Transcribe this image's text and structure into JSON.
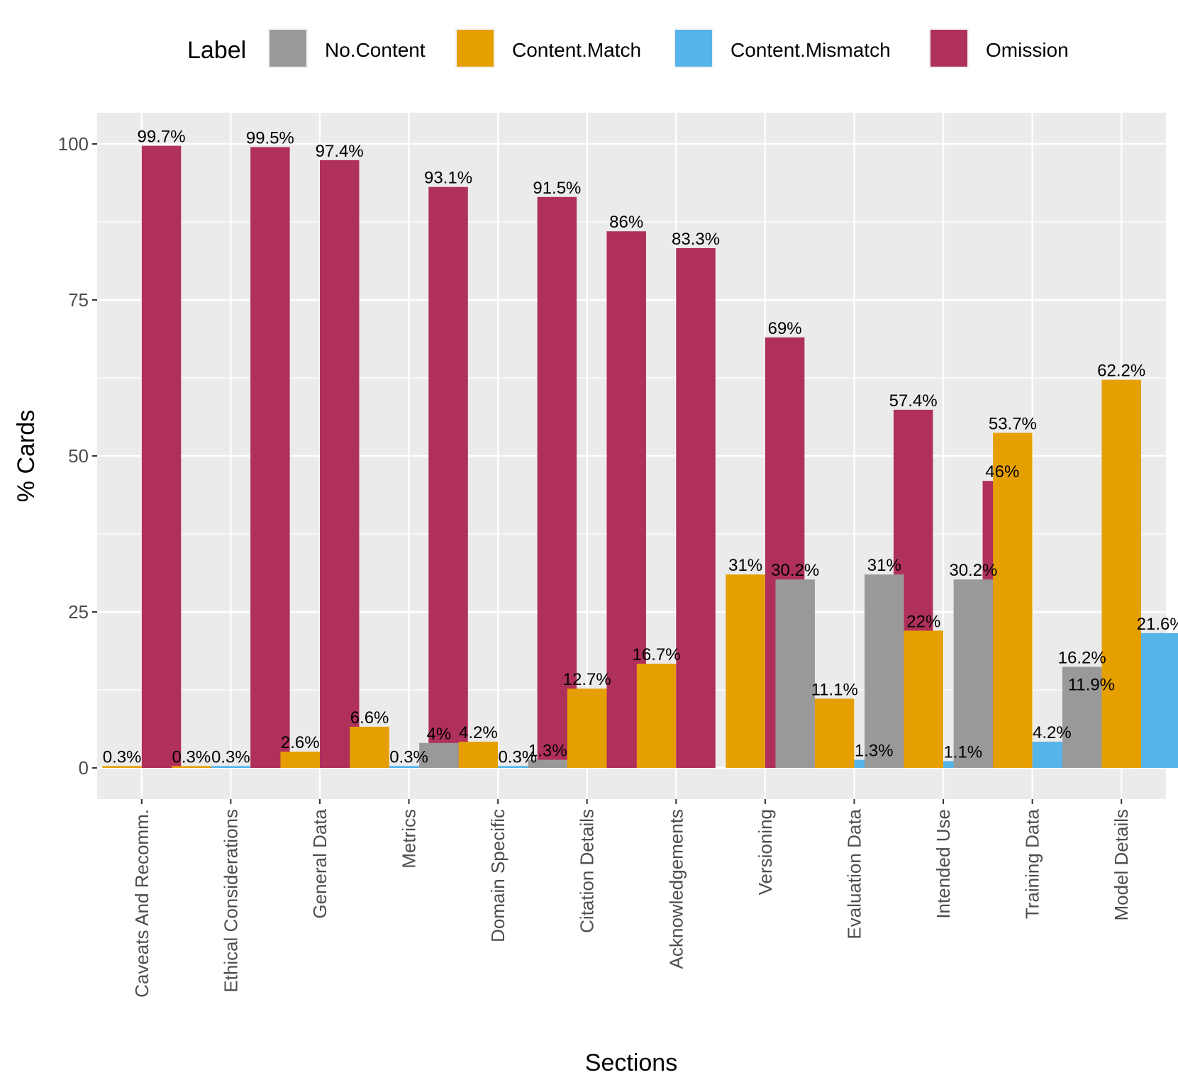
{
  "chart_data": {
    "type": "bar",
    "title": "",
    "xlabel": "Sections",
    "ylabel": "% Cards",
    "ylim": [
      -5,
      105
    ],
    "yticks": [
      0,
      25,
      50,
      75,
      100
    ],
    "legend": {
      "title": "Label",
      "position": "top",
      "entries": [
        "No.Content",
        "Content.Match",
        "Content.Mismatch",
        "Omission"
      ]
    },
    "colors": {
      "No.Content": "#999999",
      "Content.Match": "#E69F00",
      "Content.Mismatch": "#56B4E9",
      "Omission": "#B0305C"
    },
    "panel_background": "#EBEBEB",
    "categories": [
      {
        "name": "Caveats And Recomm.",
        "bars": [
          {
            "series": "Content.Match",
            "value": 0.3,
            "label": "0.3%"
          },
          {
            "series": "Omission",
            "value": 99.7,
            "label": "99.7%"
          }
        ]
      },
      {
        "name": "Ethical Considerations",
        "bars": [
          {
            "series": "Content.Match",
            "value": 0.3,
            "label": "0.3%"
          },
          {
            "series": "Content.Mismatch",
            "value": 0.3,
            "label": "0.3%"
          },
          {
            "series": "Omission",
            "value": 99.5,
            "label": "99.5%"
          }
        ]
      },
      {
        "name": "General Data",
        "bars": [
          {
            "series": "Content.Match",
            "value": 2.6,
            "label": "2.6%"
          },
          {
            "series": "Omission",
            "value": 97.4,
            "label": "97.4%"
          }
        ]
      },
      {
        "name": "Metrics",
        "bars": [
          {
            "series": "Content.Match",
            "value": 6.6,
            "label": "6.6%"
          },
          {
            "series": "Content.Mismatch",
            "value": 0.3,
            "label": "0.3%"
          },
          {
            "series": "Omission",
            "value": 93.1,
            "label": "93.1%"
          }
        ]
      },
      {
        "name": "Domain Specific",
        "bars": [
          {
            "series": "No.Content",
            "value": 4,
            "label": "4%"
          },
          {
            "series": "Content.Match",
            "value": 4.2,
            "label": "4.2%"
          },
          {
            "series": "Content.Mismatch",
            "value": 0.3,
            "label": "0.3%"
          },
          {
            "series": "Omission",
            "value": 91.5,
            "label": "91.5%"
          }
        ]
      },
      {
        "name": "Citation Details",
        "bars": [
          {
            "series": "No.Content",
            "value": 1.3,
            "label": "1.3%"
          },
          {
            "series": "Content.Match",
            "value": 12.7,
            "label": "12.7%"
          },
          {
            "series": "Omission",
            "value": 86,
            "label": "86%"
          }
        ]
      },
      {
        "name": "Acknowledgements",
        "bars": [
          {
            "series": "Content.Match",
            "value": 16.7,
            "label": "16.7%"
          },
          {
            "series": "Omission",
            "value": 83.3,
            "label": "83.3%"
          }
        ]
      },
      {
        "name": "Versioning",
        "bars": [
          {
            "series": "Content.Match",
            "value": 31,
            "label": "31%"
          },
          {
            "series": "Omission",
            "value": 69,
            "label": "69%"
          }
        ]
      },
      {
        "name": "Evaluation Data",
        "bars": [
          {
            "series": "No.Content",
            "value": 30.2,
            "label": "30.2%"
          },
          {
            "series": "Content.Match",
            "value": 11.1,
            "label": "11.1%"
          },
          {
            "series": "Content.Mismatch",
            "value": 1.3,
            "label": "1.3%"
          },
          {
            "series": "Omission",
            "value": 57.4,
            "label": "57.4%"
          }
        ]
      },
      {
        "name": "Intended Use",
        "bars": [
          {
            "series": "No.Content",
            "value": 31,
            "label": "31%"
          },
          {
            "series": "Content.Match",
            "value": 22,
            "label": "22%"
          },
          {
            "series": "Content.Mismatch",
            "value": 1.1,
            "label": "1.1%"
          },
          {
            "series": "Omission",
            "value": 46,
            "label": "46%"
          }
        ]
      },
      {
        "name": "Training Data",
        "bars": [
          {
            "series": "No.Content",
            "value": 30.2,
            "label": "30.2%"
          },
          {
            "series": "Content.Match",
            "value": 53.7,
            "label": "53.7%"
          },
          {
            "series": "Content.Mismatch",
            "value": 4.2,
            "label": "4.2%"
          },
          {
            "series": "Omission",
            "value": 11.9,
            "label": "11.9%"
          }
        ]
      },
      {
        "name": "Model Details",
        "bars": [
          {
            "series": "No.Content",
            "value": 16.2,
            "label": "16.2%"
          },
          {
            "series": "Content.Match",
            "value": 62.2,
            "label": "62.2%"
          },
          {
            "series": "Content.Mismatch",
            "value": 21.6,
            "label": "21.6%"
          }
        ]
      }
    ]
  }
}
